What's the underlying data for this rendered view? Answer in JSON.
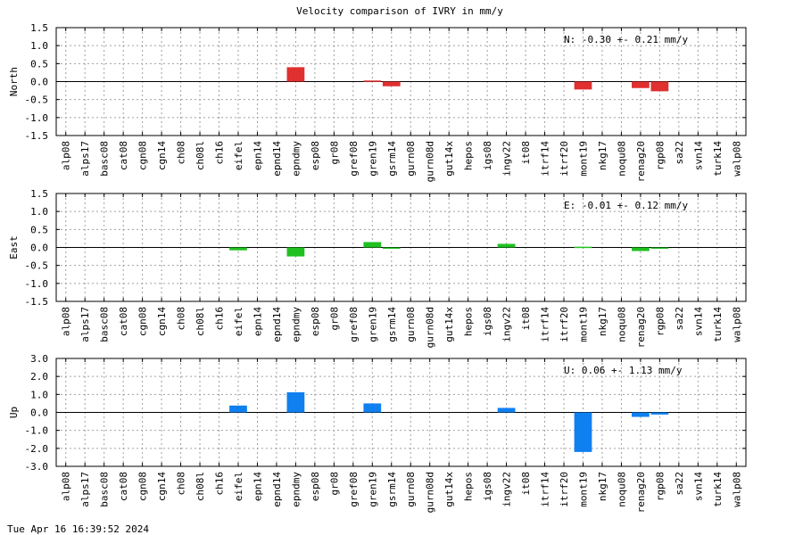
{
  "title": "Velocity comparison of IVRY in mm/y",
  "timestamp": "Tue Apr 16 16:39:52 2024",
  "chart_data": [
    {
      "type": "bar",
      "ylabel": "North",
      "ylim": [
        -1.5,
        1.5
      ],
      "yticks": [
        -1.5,
        -1.0,
        -0.5,
        0.0,
        0.5,
        1.0,
        1.5
      ],
      "ytick_labels": [
        "-1.5",
        "-1.0",
        "-0.5",
        "0.0",
        "0.5",
        "1.0",
        "1.5"
      ],
      "grid": true,
      "color": "#e03030",
      "annotation": "N:  -0.30 +-  0.21 mm/y",
      "categories": [
        "alp08",
        "alps17",
        "basc08",
        "cat08",
        "cgn08",
        "cgn14",
        "ch08",
        "ch08l",
        "ch16",
        "eifel",
        "epn14",
        "epnd14",
        "epndmy",
        "esp08",
        "gr08",
        "gref08",
        "gren19",
        "gsrm14",
        "gurn08",
        "gurn08d",
        "gut14x",
        "hepos",
        "igs08",
        "ingv22",
        "it08",
        "itrf14",
        "itrf20",
        "mont19",
        "nkg17",
        "noqu08",
        "renag20",
        "rgp08",
        "sa22",
        "svn14",
        "turk14",
        "walp08"
      ],
      "values": [
        0,
        0,
        0,
        0,
        0,
        0,
        0,
        0,
        0,
        0,
        0,
        0,
        0.4,
        0,
        0,
        0,
        0.03,
        -0.13,
        0,
        0,
        0,
        0,
        0,
        0,
        0,
        0,
        0,
        -0.22,
        0,
        0,
        -0.18,
        -0.27,
        0,
        0,
        0,
        0
      ]
    },
    {
      "type": "bar",
      "ylabel": "East",
      "ylim": [
        -1.5,
        1.5
      ],
      "yticks": [
        -1.5,
        -1.0,
        -0.5,
        0.0,
        0.5,
        1.0,
        1.5
      ],
      "ytick_labels": [
        "-1.5",
        "-1.0",
        "-0.5",
        "0.0",
        "0.5",
        "1.0",
        "1.5"
      ],
      "grid": true,
      "color": "#20c020",
      "annotation": "E:  -0.01 +-  0.12 mm/y",
      "categories": [
        "alp08",
        "alps17",
        "basc08",
        "cat08",
        "cgn08",
        "cgn14",
        "ch08",
        "ch08l",
        "ch16",
        "eifel",
        "epn14",
        "epnd14",
        "epndmy",
        "esp08",
        "gr08",
        "gref08",
        "gren19",
        "gsrm14",
        "gurn08",
        "gurn08d",
        "gut14x",
        "hepos",
        "igs08",
        "ingv22",
        "it08",
        "itrf14",
        "itrf20",
        "mont19",
        "nkg17",
        "noqu08",
        "renag20",
        "rgp08",
        "sa22",
        "svn14",
        "turk14",
        "walp08"
      ],
      "values": [
        0,
        0,
        0,
        0,
        0,
        0,
        0,
        0,
        0,
        -0.08,
        0,
        0,
        -0.25,
        0,
        0,
        0,
        0.15,
        -0.02,
        0,
        0,
        0,
        0,
        0,
        0.1,
        0,
        0,
        0,
        0.02,
        0,
        0,
        -0.1,
        -0.02,
        0,
        0,
        0,
        0
      ]
    },
    {
      "type": "bar",
      "ylabel": "Up",
      "ylim": [
        -3.0,
        3.0
      ],
      "yticks": [
        -3.0,
        -2.0,
        -1.0,
        0.0,
        1.0,
        2.0,
        3.0
      ],
      "ytick_labels": [
        "-3.0",
        "-2.0",
        "-1.0",
        "0.0",
        "1.0",
        "2.0",
        "3.0"
      ],
      "grid": true,
      "color": "#1080f0",
      "annotation": "U:   0.06 +-  1.13 mm/y",
      "categories": [
        "alp08",
        "alps17",
        "basc08",
        "cat08",
        "cgn08",
        "cgn14",
        "ch08",
        "ch08l",
        "ch16",
        "eifel",
        "epn14",
        "epnd14",
        "epndmy",
        "esp08",
        "gr08",
        "gref08",
        "gren19",
        "gsrm14",
        "gurn08",
        "gurn08d",
        "gut14x",
        "hepos",
        "igs08",
        "ingv22",
        "it08",
        "itrf14",
        "itrf20",
        "mont19",
        "nkg17",
        "noqu08",
        "renag20",
        "rgp08",
        "sa22",
        "svn14",
        "turk14",
        "walp08"
      ],
      "values": [
        0,
        0,
        0,
        0,
        0,
        0,
        0,
        0,
        0,
        0.38,
        0,
        0,
        1.12,
        0,
        0,
        0,
        0.5,
        0,
        0,
        0,
        0,
        0,
        0,
        0.25,
        0,
        0,
        0,
        -2.2,
        0,
        0,
        -0.25,
        -0.12,
        0,
        0,
        0,
        0
      ]
    }
  ]
}
